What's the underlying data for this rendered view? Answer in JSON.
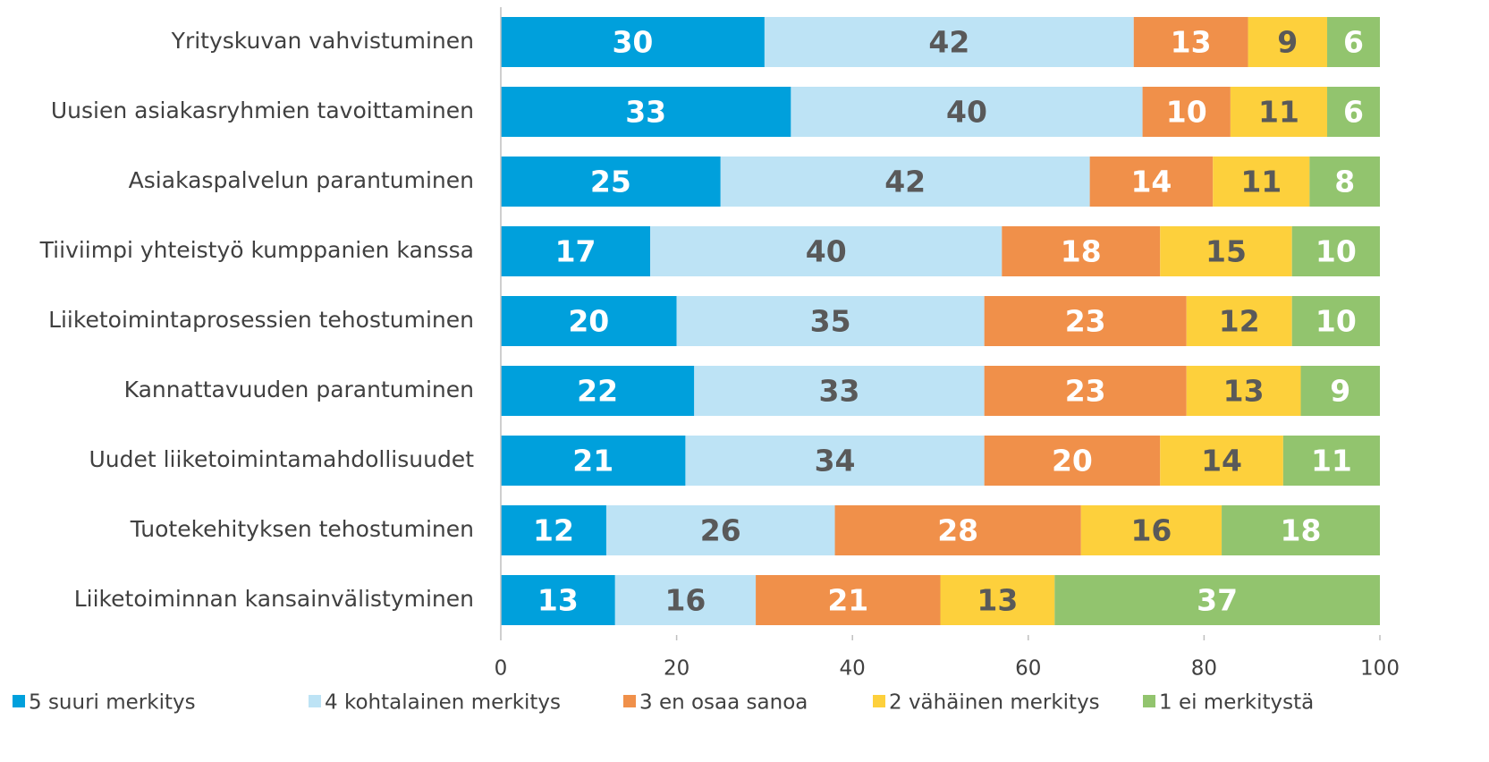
{
  "chart_data": {
    "type": "stacked-barh",
    "categories": [
      "Yrityskuvan vahvistuminen",
      "Uusien asiakasryhmien tavoittaminen",
      "Asiakaspalvelun parantuminen",
      "Tiiviimpi yhteistyö kumppanien kanssa",
      "Liiketoimintaprosessien tehostuminen",
      "Kannattavuuden parantuminen",
      "Uudet liiketoimintamahdollisuudet",
      "Tuotekehityksen tehostuminen",
      "Liiketoiminnan kansainvälistyminen"
    ],
    "series": [
      {
        "name": "5 suuri merkitys",
        "color": "#00a0dc",
        "label_color": "#ffffff",
        "values": [
          30,
          33,
          25,
          17,
          20,
          22,
          21,
          12,
          13
        ]
      },
      {
        "name": "4 kohtalainen merkitys",
        "color": "#bde3f5",
        "label_color": "#595959",
        "values": [
          42,
          40,
          42,
          40,
          35,
          33,
          34,
          26,
          16
        ]
      },
      {
        "name": "3 en osaa sanoa",
        "color": "#f0904a",
        "label_color": "#ffffff",
        "values": [
          13,
          10,
          14,
          18,
          23,
          23,
          20,
          28,
          21
        ]
      },
      {
        "name": "2 vähäinen merkitys",
        "color": "#fdd03c",
        "label_color": "#595959",
        "values": [
          9,
          11,
          11,
          15,
          12,
          13,
          14,
          16,
          13
        ]
      },
      {
        "name": "1 ei merkitystä",
        "color": "#92c46e",
        "label_color": "#ffffff",
        "values": [
          6,
          6,
          8,
          10,
          10,
          9,
          11,
          18,
          37
        ]
      }
    ],
    "xlim": [
      0,
      100
    ],
    "xticks": [
      0,
      20,
      40,
      60,
      80,
      100
    ],
    "grid": false,
    "legend": "bottom"
  }
}
